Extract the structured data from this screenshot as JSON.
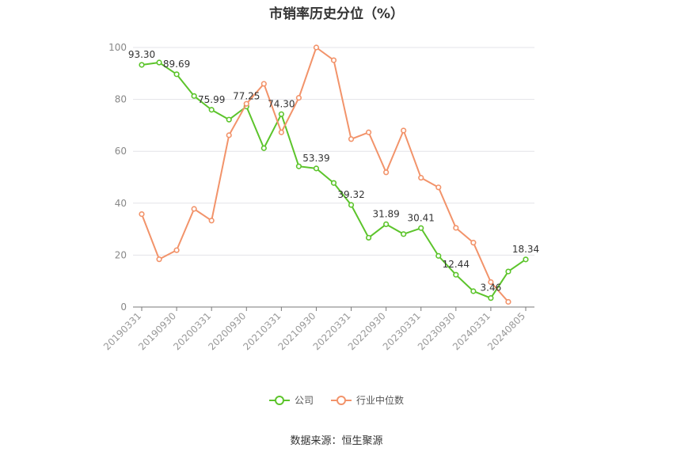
{
  "chart_data": {
    "type": "line",
    "title": "市销率历史分位（%）",
    "source": "数据来源：恒生聚源",
    "ylim": [
      0,
      100
    ],
    "yticks": [
      0,
      20,
      40,
      60,
      80,
      100
    ],
    "x": [
      "20190331",
      "20190630",
      "20190930",
      "20191231",
      "20200331",
      "20200630",
      "20200930",
      "20201231",
      "20210331",
      "20210630",
      "20210930",
      "20211231",
      "20220331",
      "20220630",
      "20220930",
      "20221231",
      "20230331",
      "20230630",
      "20230930",
      "20231231",
      "20240331",
      "20240630",
      "20240805"
    ],
    "xtick_labels": [
      "20190331",
      "20190930",
      "20200331",
      "20200930",
      "20210331",
      "20210930",
      "20220331",
      "20220930",
      "20230331",
      "20230930",
      "20240331",
      "20240805"
    ],
    "grid": true,
    "legend_position": "bottom",
    "series": [
      {
        "name": "公司",
        "color": "#5cc42b",
        "values": [
          93.3,
          94.2,
          89.69,
          81.3,
          75.99,
          72.2,
          77.25,
          61.2,
          74.3,
          54.2,
          53.39,
          47.8,
          39.32,
          26.7,
          31.89,
          28.1,
          30.41,
          19.7,
          12.44,
          6.1,
          3.46,
          13.7,
          18.34
        ],
        "labels": [
          "93.30",
          "",
          "89.69",
          "",
          "75.99",
          "",
          "77.25",
          "",
          "74.30",
          "",
          "53.39",
          "",
          "39.32",
          "",
          "31.89",
          "",
          "30.41",
          "",
          "12.44",
          "",
          "3.46",
          "",
          "18.34"
        ]
      },
      {
        "name": "行业中位数",
        "color": "#f2936a",
        "values": [
          35.8,
          18.4,
          21.9,
          37.8,
          33.3,
          66.2,
          78.3,
          86.0,
          67.3,
          80.6,
          100.0,
          95.1,
          64.7,
          67.3,
          51.9,
          68.0,
          49.8,
          46.1,
          30.5,
          24.8,
          9.6,
          2.0,
          null
        ]
      }
    ]
  }
}
